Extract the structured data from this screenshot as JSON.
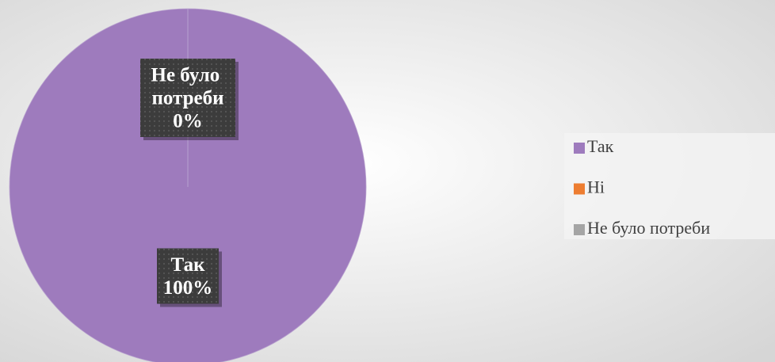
{
  "chart_data": {
    "type": "pie",
    "categories": [
      "Так",
      "Ні",
      "Не було потреби"
    ],
    "values": [
      100,
      0,
      0
    ],
    "value_labels": [
      "100%",
      null,
      "0%"
    ],
    "colors": [
      "#9e7bbd",
      "#ed7d31",
      "#a5a5a5"
    ],
    "legend": "right"
  }
}
